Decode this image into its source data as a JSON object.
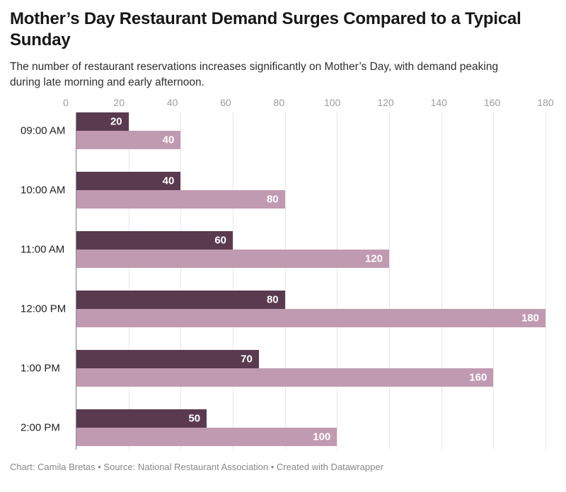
{
  "header": {
    "title": "Mother’s Day Restaurant Demand Surges Compared to a Typical Sunday",
    "subtitle": "The number of restaurant reservations increases significantly on Mother’s Day, with demand peaking during late morning and early afternoon."
  },
  "chart_data": {
    "type": "bar",
    "orientation": "horizontal",
    "title": "Mother’s Day Restaurant Demand Surges Compared to a Typical Sunday",
    "subtitle": "The number of restaurant reservations increases significantly on Mother’s Day, with demand peaking during late morning and early afternoon.",
    "categories": [
      "09:00 AM",
      "10:00 AM",
      "11:00 AM",
      "12:00 PM",
      "1:00 PM",
      "2:00 PM"
    ],
    "series": [
      {
        "name": "dark-bars",
        "color": "#5a3a4f",
        "value_label_color": "#ffffff",
        "values": [
          20,
          40,
          60,
          80,
          70,
          50
        ]
      },
      {
        "name": "light-bars",
        "color": "#c09ab1",
        "value_label_color": "#ffffff",
        "values": [
          40,
          80,
          120,
          180,
          160,
          100
        ]
      }
    ],
    "xlim": [
      0,
      180
    ],
    "xticks": [
      0,
      20,
      40,
      60,
      80,
      100,
      120,
      140,
      160,
      180
    ],
    "grid": true,
    "legend": "none",
    "value_labels": "inside-end",
    "xlabel": "",
    "ylabel": ""
  },
  "styles": {
    "grid_color": "#e7e7e7",
    "axis_line_color": "#8f8f8f",
    "tick_label_color": "#9d9d9d",
    "category_label_color": "#1f1f1f",
    "title_color": "#161616",
    "subtitle_color": "#2e2e2e",
    "footer_color": "#878787",
    "background": "#ffffff"
  },
  "footer": {
    "text": "Chart: Camila Bretas • Source: National Restaurant Association • Created with Datawrapper"
  }
}
